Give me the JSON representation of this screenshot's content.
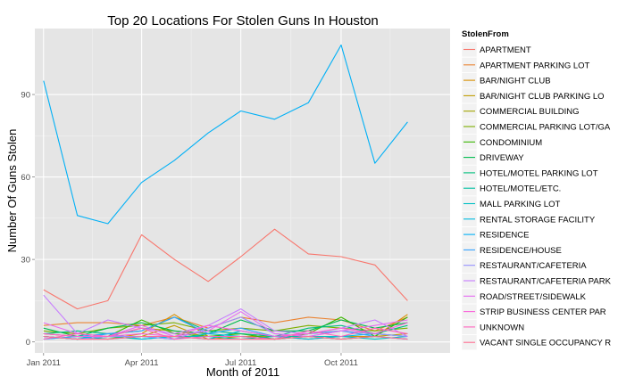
{
  "chart_data": {
    "type": "line",
    "title": "Top 20 Locations For Stolen Guns In Houston",
    "xlabel": "Month of 2011",
    "ylabel": "Number Of Guns Stolen",
    "x": [
      "2011-01",
      "2011-02",
      "2011-03",
      "2011-04",
      "2011-05",
      "2011-06",
      "2011-07",
      "2011-08",
      "2011-09",
      "2011-10",
      "2011-11",
      "2011-12"
    ],
    "x_tick_labels": [
      "Jan 2011",
      "Apr 2011",
      "Jul 2011",
      "Oct 2011"
    ],
    "x_tick_index": [
      0,
      3,
      6,
      9
    ],
    "xlim": [
      "2010-12-24",
      "2012-01-09"
    ],
    "ylim": [
      -4,
      114
    ],
    "y_ticks": [
      0,
      30,
      60,
      90
    ],
    "grid": true,
    "background": "#e5e5e5",
    "legend": {
      "title": "StolenFrom",
      "placement": "right"
    },
    "series": [
      {
        "name": "APARTMENT",
        "color": "#F8766D",
        "values": [
          19,
          12,
          15,
          39,
          30,
          22,
          31,
          41,
          32,
          31,
          28,
          15
        ]
      },
      {
        "name": "APARTMENT PARKING LOT",
        "color": "#EA8331",
        "values": [
          6,
          7,
          7,
          6,
          9,
          5,
          9,
          7,
          9,
          8,
          4,
          9
        ]
      },
      {
        "name": "BAR/NIGHT CLUB",
        "color": "#D89000",
        "values": [
          3,
          2,
          1,
          3,
          10,
          2,
          2,
          2,
          1,
          2,
          2,
          10
        ]
      },
      {
        "name": "BAR/NIGHT CLUB PARKING LO",
        "color": "#C09B00",
        "values": [
          2,
          1,
          2,
          2,
          6,
          1,
          2,
          1,
          2,
          1,
          2,
          3
        ]
      },
      {
        "name": "COMMERCIAL BUILDING",
        "color": "#A3A500",
        "values": [
          3,
          2,
          2,
          5,
          4,
          2,
          3,
          2,
          3,
          4,
          3,
          2
        ]
      },
      {
        "name": "COMMERCIAL PARKING LOT/GA",
        "color": "#7CAE00",
        "values": [
          4,
          3,
          5,
          6,
          7,
          4,
          5,
          4,
          6,
          5,
          4,
          5
        ]
      },
      {
        "name": "CONDOMINIUM",
        "color": "#39B600",
        "values": [
          2,
          1,
          2,
          8,
          3,
          2,
          3,
          1,
          3,
          9,
          2,
          9
        ]
      },
      {
        "name": "DRIVEWAY",
        "color": "#00BB4E",
        "values": [
          5,
          2,
          5,
          7,
          4,
          3,
          8,
          4,
          4,
          8,
          5,
          7
        ]
      },
      {
        "name": "HOTEL/MOTEL PARKING LOT",
        "color": "#00BF7D",
        "values": [
          3,
          4,
          3,
          4,
          9,
          4,
          3,
          2,
          5,
          6,
          3,
          6
        ]
      },
      {
        "name": "HOTEL/MOTEL/ETC.",
        "color": "#00C1A3",
        "values": [
          2,
          1,
          2,
          1,
          2,
          2,
          1,
          2,
          2,
          1,
          2,
          1
        ]
      },
      {
        "name": "MALL PARKING LOT",
        "color": "#00BFC4",
        "values": [
          1,
          2,
          1,
          2,
          1,
          3,
          2,
          1,
          2,
          2,
          1,
          2
        ]
      },
      {
        "name": "RENTAL STORAGE FACILITY",
        "color": "#00BAE0",
        "values": [
          2,
          1,
          3,
          1,
          2,
          1,
          4,
          2,
          1,
          2,
          3,
          2
        ]
      },
      {
        "name": "RESIDENCE",
        "color": "#00B0F6",
        "values": [
          95,
          46,
          43,
          58,
          66,
          76,
          84,
          81,
          87,
          108,
          65,
          80
        ]
      },
      {
        "name": "RESIDENCE/HOUSE",
        "color": "#35A2FF",
        "values": [
          1,
          2,
          3,
          4,
          9,
          3,
          5,
          2,
          3,
          4,
          2,
          1
        ]
      },
      {
        "name": "RESTAURANT/CAFETERIA",
        "color": "#9590FF",
        "values": [
          2,
          1,
          2,
          2,
          1,
          5,
          9,
          3,
          2,
          4,
          3,
          2
        ]
      },
      {
        "name": "RESTAURANT/CAFETERIA PARK",
        "color": "#C77CFF",
        "values": [
          17,
          3,
          8,
          5,
          3,
          6,
          12,
          4,
          3,
          5,
          8,
          2
        ]
      },
      {
        "name": "ROAD/STREET/SIDEWALK",
        "color": "#E76BF3",
        "values": [
          7,
          3,
          2,
          6,
          2,
          4,
          11,
          3,
          2,
          4,
          6,
          8
        ]
      },
      {
        "name": "STRIP BUSINESS CENTER PAR",
        "color": "#FA62DB",
        "values": [
          3,
          2,
          2,
          3,
          2,
          6,
          4,
          2,
          3,
          5,
          3,
          7
        ]
      },
      {
        "name": "UNKNOWN",
        "color": "#FF62BC",
        "values": [
          1,
          3,
          2,
          5,
          1,
          2,
          2,
          1,
          4,
          2,
          5,
          3
        ]
      },
      {
        "name": "VACANT SINGLE OCCUPANCY R",
        "color": "#FF6C91",
        "values": [
          2,
          1,
          1,
          2,
          2,
          1,
          1,
          1,
          2,
          1,
          2,
          1
        ]
      }
    ]
  }
}
